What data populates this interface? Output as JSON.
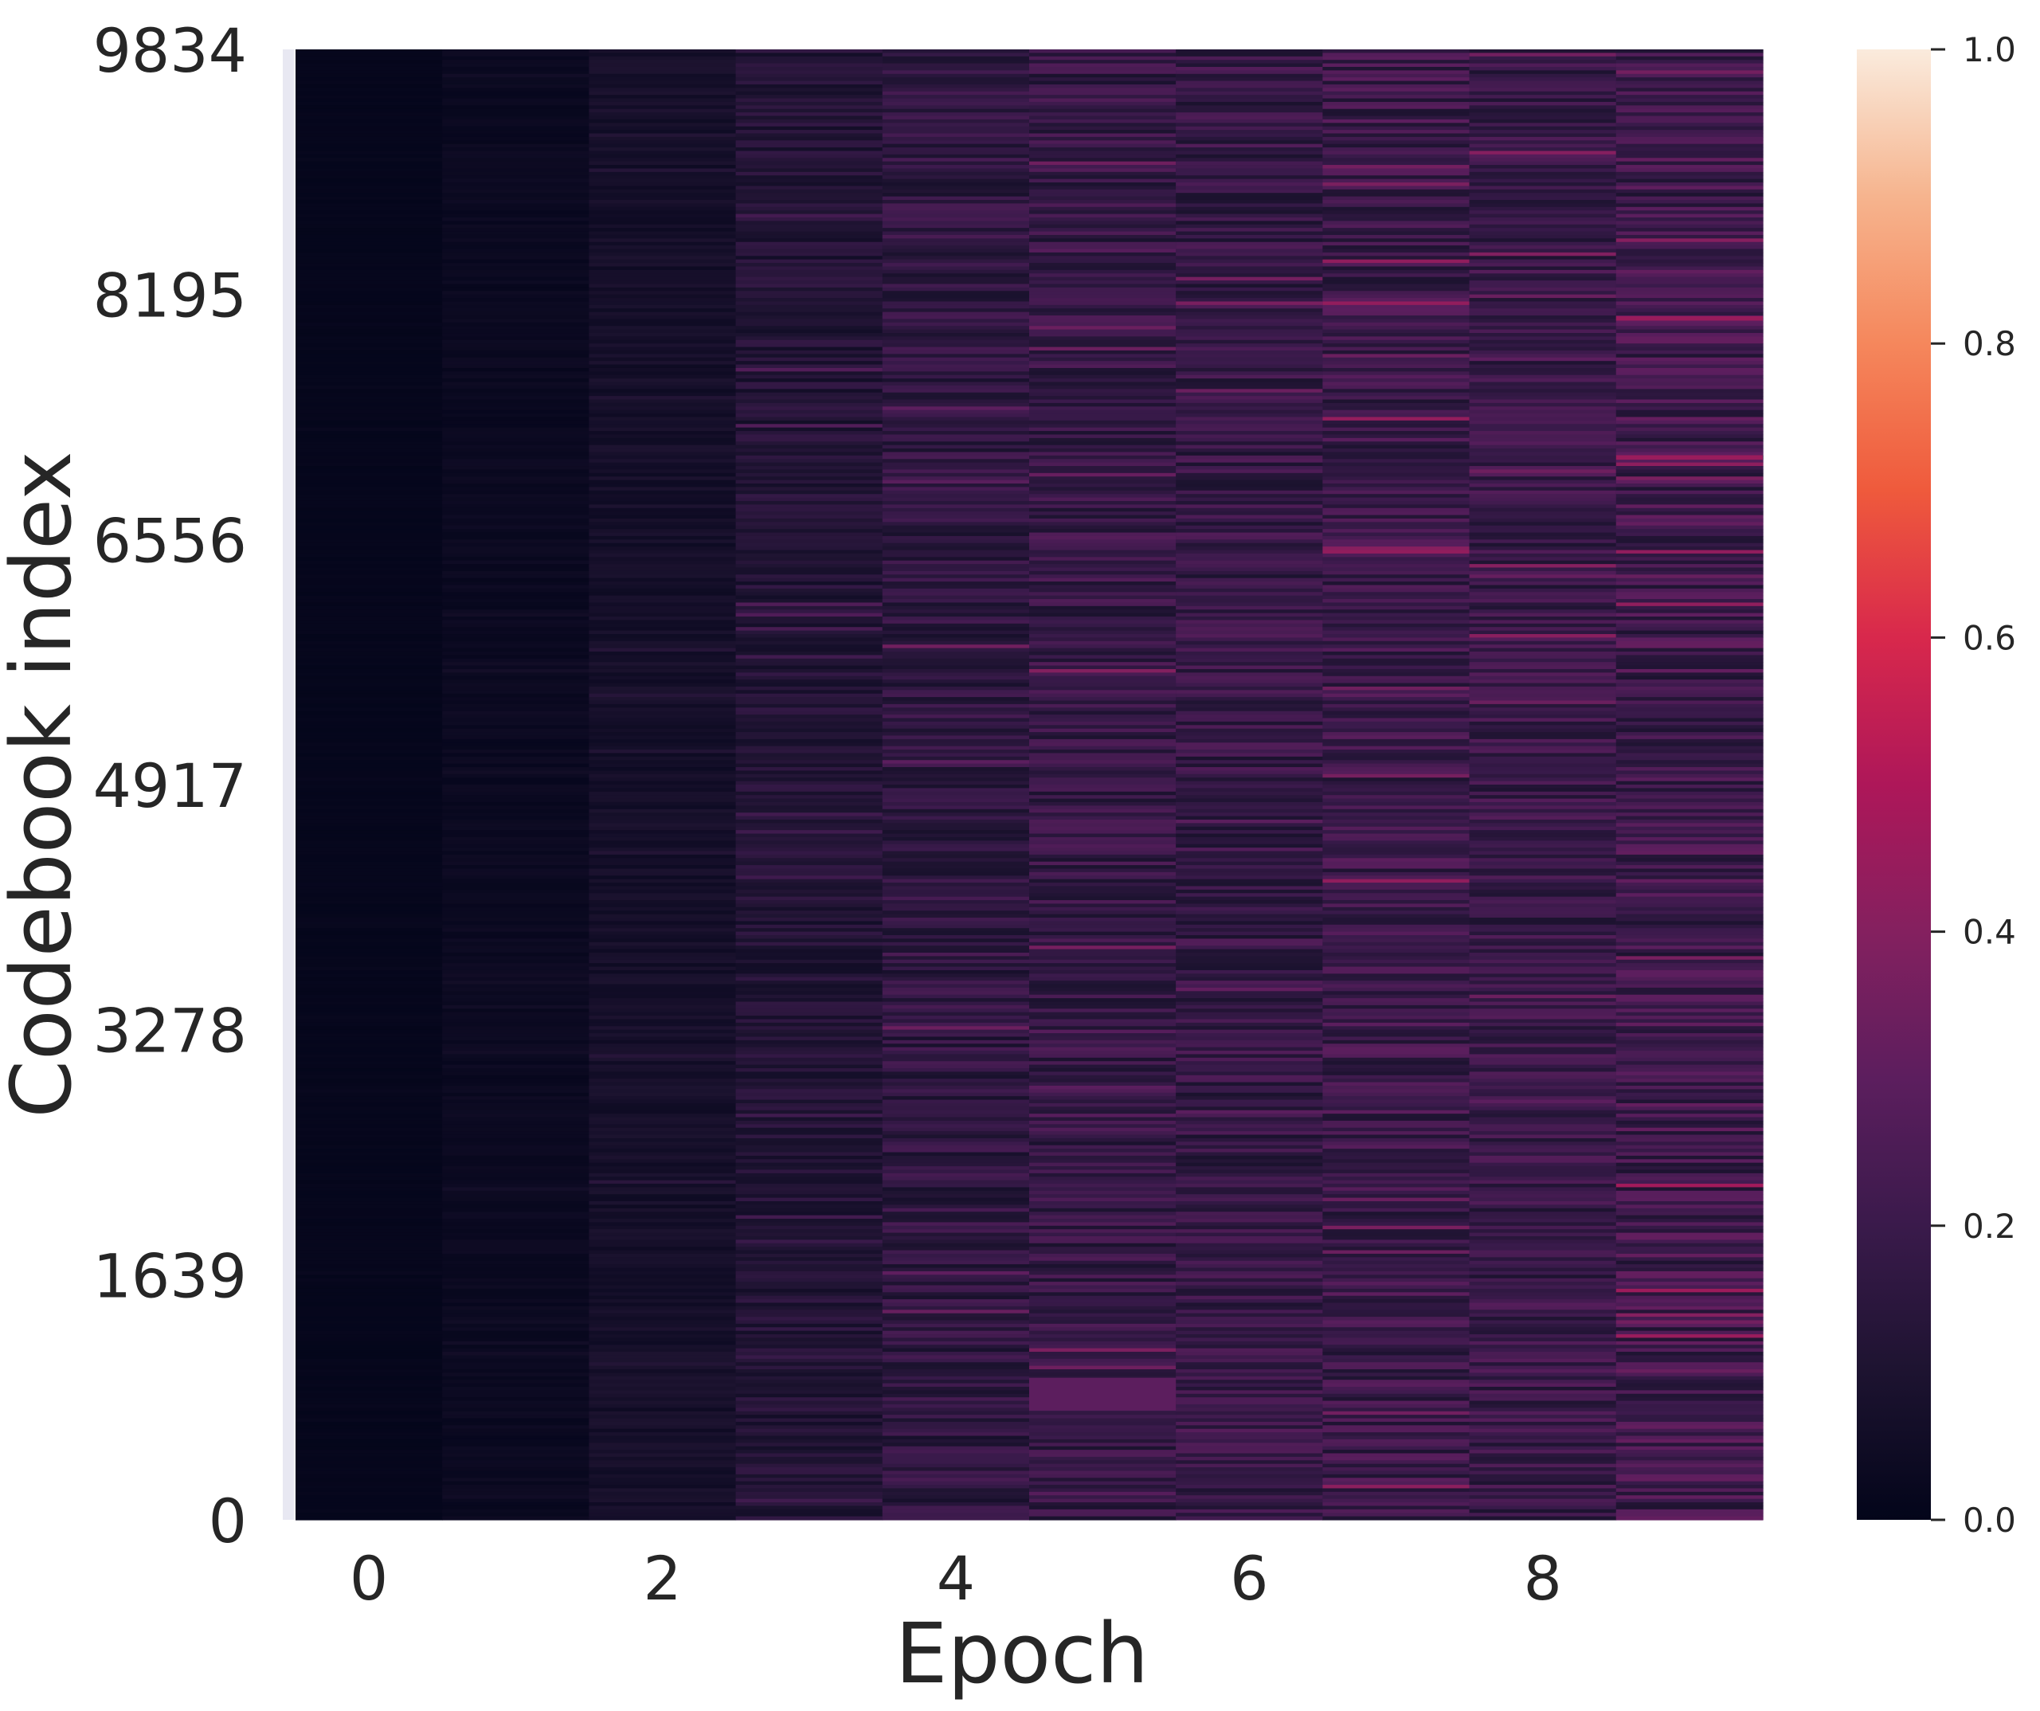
{
  "chart_data": {
    "type": "heatmap",
    "title": "",
    "xlabel": "Epoch",
    "ylabel": "Codebook index",
    "x": [
      0,
      1,
      2,
      3,
      4,
      5,
      6,
      7,
      8,
      9
    ],
    "x_tick_labels": [
      "0",
      "2",
      "4",
      "6",
      "8"
    ],
    "y_range": [
      0,
      9834
    ],
    "y_tick_labels": [
      "9834",
      "8195",
      "6556",
      "4917",
      "3278",
      "1639",
      "0"
    ],
    "colorbar": {
      "range": [
        0.0,
        1.0
      ],
      "tick_labels": [
        "1.0",
        "0.8",
        "0.6",
        "0.4",
        "0.2",
        "0.0"
      ],
      "colormap": "rocket"
    },
    "column_mean_values": [
      0.01,
      0.03,
      0.07,
      0.12,
      0.16,
      0.18,
      0.18,
      0.2,
      0.19,
      0.21
    ],
    "column_spread_values": [
      0.005,
      0.015,
      0.03,
      0.06,
      0.08,
      0.09,
      0.09,
      0.1,
      0.09,
      0.11
    ],
    "notable_bands": [
      {
        "epoch": 5,
        "index_range": [
          730,
          950
        ],
        "value": 0.3
      },
      {
        "epoch": 9,
        "index_range": [
          7090,
          7120
        ],
        "value": 0.45
      },
      {
        "epoch": 9,
        "index_range": [
          8020,
          8050
        ],
        "value": 0.45
      }
    ]
  }
}
